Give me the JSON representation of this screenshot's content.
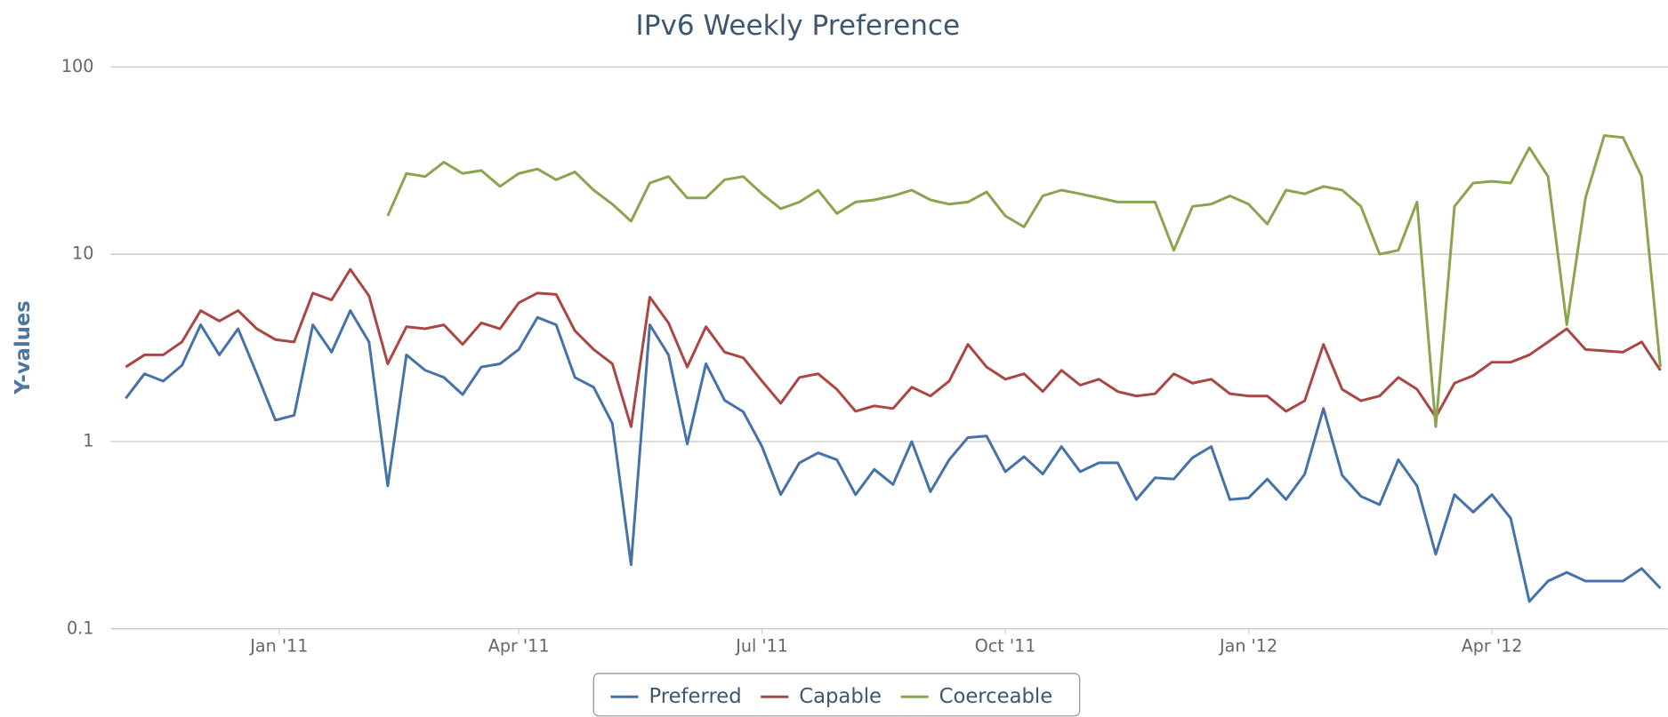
{
  "chart_data": {
    "type": "line",
    "title": "IPv6 Weekly Preference",
    "y_label": "Y-values",
    "log_scale": true,
    "grid": true,
    "legend": "bottom",
    "x": [
      0,
      1,
      2,
      3,
      4,
      5,
      6,
      7,
      8,
      9,
      10,
      11,
      12,
      13,
      14,
      15,
      16,
      17,
      18,
      19,
      20,
      21,
      22,
      23,
      24,
      25,
      26,
      27,
      28,
      29,
      30,
      31,
      32,
      33,
      34,
      35,
      36,
      37,
      38,
      39,
      40,
      41,
      42,
      43,
      44,
      45,
      46,
      47,
      48,
      49,
      50,
      51,
      52,
      53,
      54,
      55,
      56,
      57,
      58,
      59,
      60,
      61,
      62,
      63,
      64,
      65,
      66,
      67,
      68,
      69,
      70,
      71,
      72,
      73,
      74,
      75,
      76,
      77,
      78,
      79,
      80,
      81,
      82
    ],
    "xlim": [
      -0.8,
      82.4
    ],
    "xticks": [
      {
        "value": 8.2,
        "label": "Jan '11"
      },
      {
        "value": 21,
        "label": "Apr '11"
      },
      {
        "value": 34,
        "label": "Jul '11"
      },
      {
        "value": 47,
        "label": "Oct '11"
      },
      {
        "value": 60,
        "label": "Jan '12"
      },
      {
        "value": 73,
        "label": "Apr '12"
      }
    ],
    "ylim": [
      0.1,
      100
    ],
    "yticks": [
      0.1,
      1,
      10,
      100
    ],
    "series": [
      {
        "name": "Preferred",
        "color": "#4572a7",
        "values": [
          1.7,
          2.3,
          2.1,
          2.55,
          4.2,
          2.9,
          4.0,
          2.3,
          1.3,
          1.38,
          4.2,
          3.0,
          5.0,
          3.4,
          0.58,
          2.9,
          2.4,
          2.2,
          1.78,
          2.5,
          2.6,
          3.1,
          4.6,
          4.2,
          2.2,
          1.95,
          1.25,
          0.22,
          4.2,
          2.9,
          0.97,
          2.6,
          1.66,
          1.44,
          0.94,
          0.52,
          0.77,
          0.87,
          0.8,
          0.52,
          0.71,
          0.59,
          1.0,
          0.54,
          0.8,
          1.05,
          1.07,
          0.69,
          0.83,
          0.67,
          0.94,
          0.69,
          0.77,
          0.77,
          0.49,
          0.64,
          0.63,
          0.82,
          0.94,
          0.49,
          0.5,
          0.63,
          0.49,
          0.67,
          1.5,
          0.66,
          0.51,
          0.46,
          0.8,
          0.58,
          0.25,
          0.52,
          0.42,
          0.52,
          0.39,
          0.14,
          0.18,
          0.2,
          0.18,
          0.18,
          0.18,
          0.21,
          0.165
        ]
      },
      {
        "name": "Capable",
        "color": "#aa4643",
        "values": [
          2.5,
          2.9,
          2.9,
          3.4,
          5.0,
          4.4,
          5.0,
          4.0,
          3.5,
          3.4,
          6.2,
          5.7,
          8.3,
          6.0,
          2.6,
          4.1,
          4.0,
          4.2,
          3.3,
          4.3,
          4.0,
          5.5,
          6.2,
          6.1,
          3.9,
          3.1,
          2.6,
          1.2,
          5.9,
          4.3,
          2.5,
          4.1,
          3.0,
          2.8,
          2.1,
          1.6,
          2.2,
          2.3,
          1.9,
          1.45,
          1.55,
          1.5,
          1.95,
          1.75,
          2.1,
          3.3,
          2.5,
          2.15,
          2.3,
          1.85,
          2.4,
          2.0,
          2.15,
          1.85,
          1.75,
          1.8,
          2.3,
          2.05,
          2.15,
          1.8,
          1.75,
          1.75,
          1.45,
          1.65,
          3.3,
          1.9,
          1.65,
          1.75,
          2.2,
          1.9,
          1.35,
          2.05,
          2.25,
          2.65,
          2.65,
          2.9,
          3.4,
          4.0,
          3.1,
          3.05,
          3.0,
          3.4,
          2.4
        ]
      },
      {
        "name": "Coerceable",
        "color": "#89a54e",
        "values": [
          null,
          null,
          null,
          null,
          null,
          null,
          null,
          null,
          null,
          null,
          null,
          null,
          null,
          null,
          16,
          27,
          26,
          31,
          27,
          28,
          23,
          27,
          28.5,
          25,
          27.5,
          22,
          18.5,
          15,
          24,
          26,
          20,
          20,
          25,
          26,
          21,
          17.5,
          19,
          22,
          16.5,
          19,
          19.5,
          20.5,
          22,
          19.5,
          18.5,
          19,
          21.5,
          16,
          14,
          20.5,
          22,
          21,
          20,
          19,
          19,
          19,
          10.5,
          18,
          18.5,
          20.5,
          18.5,
          14.5,
          22,
          21,
          23,
          22,
          18,
          10,
          10.5,
          19,
          1.2,
          18,
          24,
          24.5,
          24,
          37,
          26,
          4.2,
          20,
          43,
          42,
          26,
          2.5
        ]
      }
    ]
  }
}
